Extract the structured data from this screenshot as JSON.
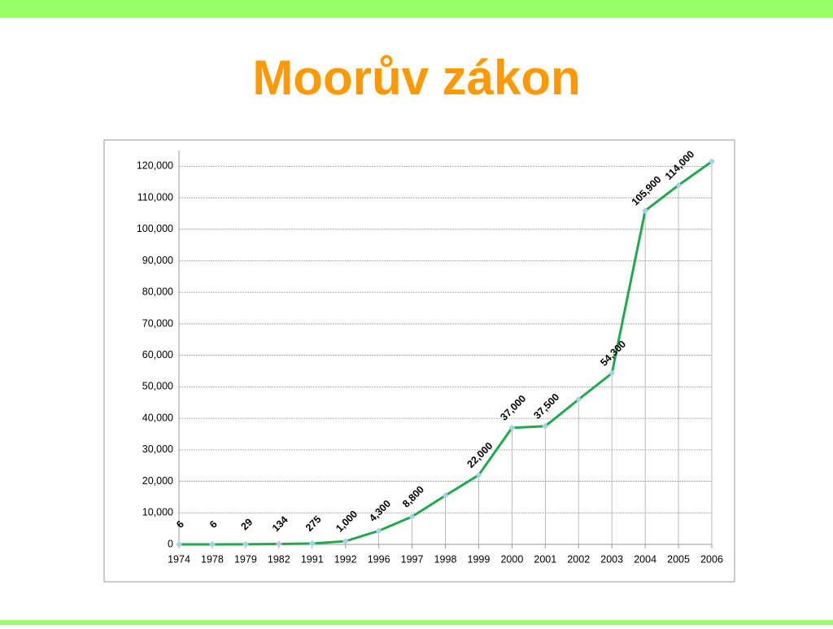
{
  "chart_data": {
    "type": "line",
    "title": "Moorův zákon",
    "categories": [
      "1974",
      "1978",
      "1979",
      "1982",
      "1991",
      "1992",
      "1996",
      "1997",
      "1998",
      "1999",
      "2000",
      "2001",
      "2002",
      "2003",
      "2004",
      "2005",
      "2006"
    ],
    "values": [
      6,
      6,
      29,
      134,
      275,
      1000,
      4300,
      8800,
      15500,
      22000,
      37000,
      37500,
      46000,
      54300,
      105900,
      114000,
      121500
    ],
    "value_labels": [
      "6",
      "6",
      "29",
      "134",
      "275",
      "1,000",
      "4,300",
      "8,800",
      null,
      "22,000",
      "37,000",
      "37,500",
      null,
      "54,300",
      "105,900",
      "114,000",
      null
    ],
    "color": "#1faa4f",
    "marker_color": "#a9d0e3",
    "ylim": [
      0,
      125000
    ],
    "yticks": [
      0,
      {
        "value": 10000,
        "label": "10,000"
      },
      {
        "value": 20000,
        "label": "20,000"
      },
      {
        "value": 30000,
        "label": "30,000"
      },
      {
        "value": 40000,
        "label": "40,000"
      },
      {
        "value": 50000,
        "label": "50,000"
      },
      {
        "value": 60000,
        "label": "60,000"
      },
      {
        "value": 70000,
        "label": "70,000"
      },
      {
        "value": 80000,
        "label": "80,000"
      },
      {
        "value": 90000,
        "label": "90,000"
      },
      {
        "value": 100000,
        "label": "100,000"
      },
      {
        "value": 110000,
        "label": "110,000"
      },
      {
        "value": 120000,
        "label": "120,000"
      }
    ],
    "grid": true
  }
}
